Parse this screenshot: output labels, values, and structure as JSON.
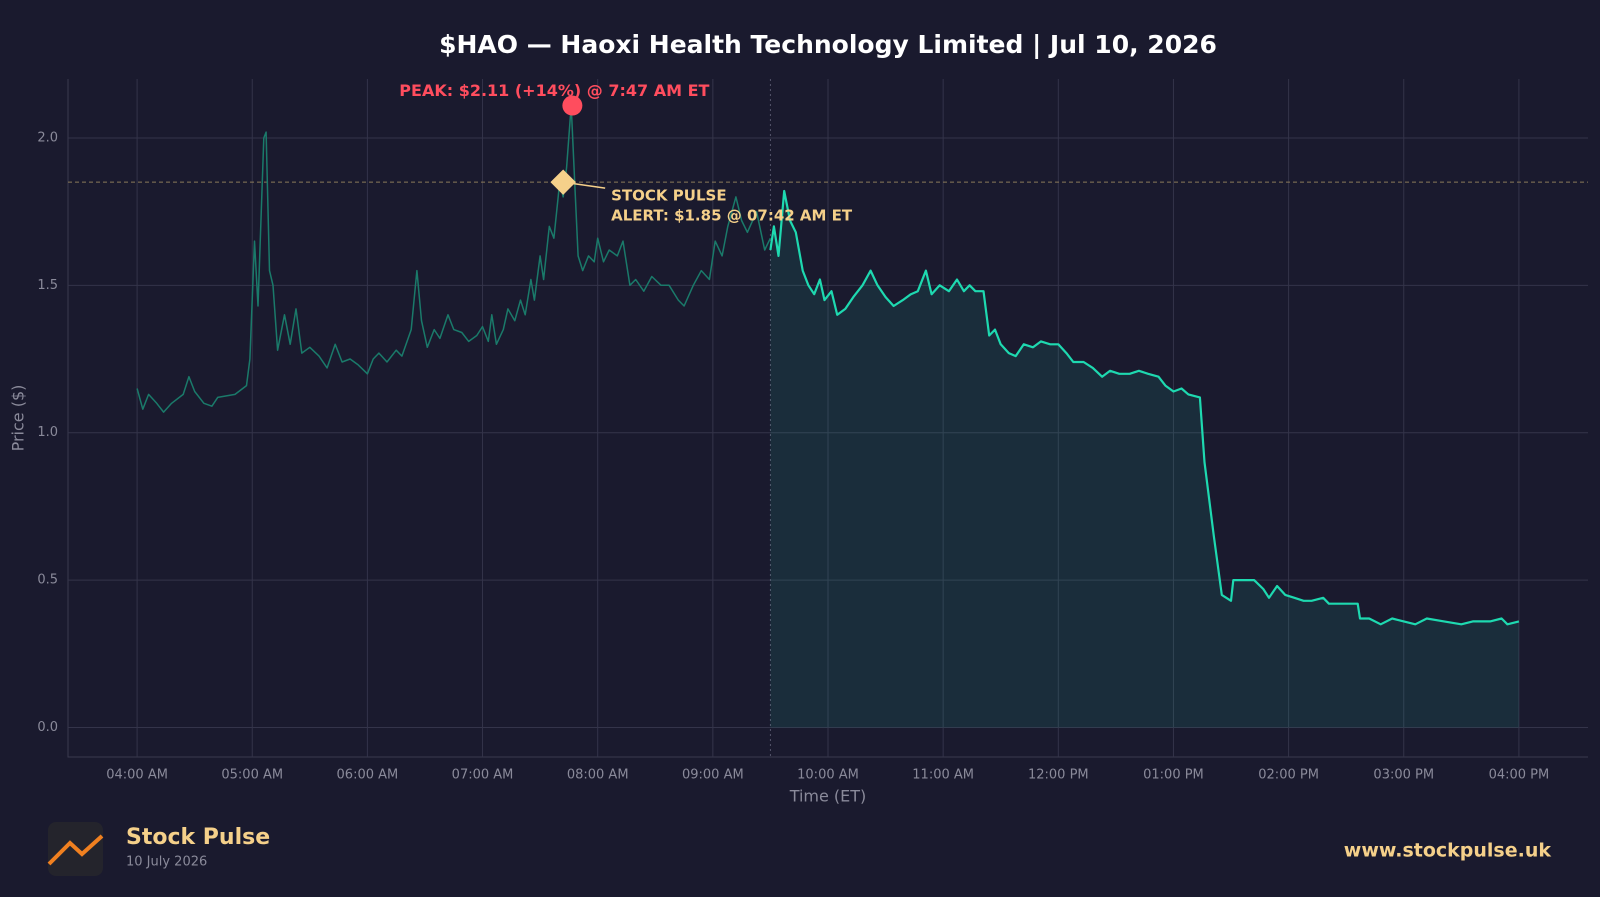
{
  "chart_data": {
    "type": "line",
    "title": "$HAO — Haoxi Health Technology Limited  |  Jul 10, 2026",
    "xlabel": "Time (ET)",
    "ylabel": "Price ($)",
    "xlim": [
      3.4,
      16.6
    ],
    "ylim": [
      -0.1,
      2.2
    ],
    "xticks": [
      {
        "value": 4,
        "label": "04:00 AM"
      },
      {
        "value": 5,
        "label": "05:00 AM"
      },
      {
        "value": 6,
        "label": "06:00 AM"
      },
      {
        "value": 7,
        "label": "07:00 AM"
      },
      {
        "value": 8,
        "label": "08:00 AM"
      },
      {
        "value": 9,
        "label": "09:00 AM"
      },
      {
        "value": 10,
        "label": "10:00 AM"
      },
      {
        "value": 11,
        "label": "11:00 AM"
      },
      {
        "value": 12,
        "label": "12:00 PM"
      },
      {
        "value": 13,
        "label": "01:00 PM"
      },
      {
        "value": 14,
        "label": "02:00 PM"
      },
      {
        "value": 15,
        "label": "03:00 PM"
      },
      {
        "value": 16,
        "label": "04:00 PM"
      }
    ],
    "yticks": [
      {
        "value": 0,
        "label": "0.0"
      },
      0.5,
      {
        "value": 1,
        "label": "1.0"
      },
      1.5,
      {
        "value": 2,
        "label": "2.0"
      }
    ],
    "grid": true,
    "market_open": 9.5,
    "series": [
      {
        "color": "#1a7a6a",
        "fill": false,
        "x": [
          4.0,
          4.05,
          4.1,
          4.17,
          4.23,
          4.3,
          4.4,
          4.45,
          4.5,
          4.58,
          4.65,
          4.7,
          4.85,
          4.95,
          4.98,
          5.02,
          5.05,
          5.1,
          5.12,
          5.15,
          5.18,
          5.22,
          5.28,
          5.33,
          5.38,
          5.43,
          5.5,
          5.58,
          5.65,
          5.72,
          5.78,
          5.85,
          5.92,
          6.0,
          6.05,
          6.1,
          6.17,
          6.25,
          6.3,
          6.38,
          6.43,
          6.47,
          6.52,
          6.58,
          6.63,
          6.7,
          6.75,
          6.82,
          6.88,
          6.95,
          7.0,
          7.05,
          7.08,
          7.12,
          7.18,
          7.22,
          7.28,
          7.33,
          7.37,
          7.42,
          7.45,
          7.5,
          7.53,
          7.58,
          7.62,
          7.67,
          7.7,
          7.73,
          7.77,
          7.8,
          7.83,
          7.87,
          7.92,
          7.97,
          8.0,
          8.05,
          8.1,
          8.17,
          8.22,
          8.28,
          8.33,
          8.4,
          8.47,
          8.55,
          8.62,
          8.7,
          8.75,
          8.83,
          8.9,
          8.97,
          9.02,
          9.08,
          9.13,
          9.2,
          9.25,
          9.3,
          9.38,
          9.45,
          9.5
        ],
        "values": [
          1.15,
          1.08,
          1.13,
          1.1,
          1.07,
          1.1,
          1.13,
          1.19,
          1.14,
          1.1,
          1.09,
          1.12,
          1.13,
          1.16,
          1.25,
          1.65,
          1.43,
          2.0,
          2.02,
          1.55,
          1.5,
          1.28,
          1.4,
          1.3,
          1.42,
          1.27,
          1.29,
          1.26,
          1.22,
          1.3,
          1.24,
          1.25,
          1.23,
          1.2,
          1.25,
          1.27,
          1.24,
          1.28,
          1.26,
          1.35,
          1.55,
          1.38,
          1.29,
          1.35,
          1.32,
          1.4,
          1.35,
          1.34,
          1.31,
          1.33,
          1.36,
          1.31,
          1.4,
          1.3,
          1.35,
          1.42,
          1.38,
          1.45,
          1.4,
          1.52,
          1.45,
          1.6,
          1.52,
          1.7,
          1.66,
          1.85,
          1.8,
          1.9,
          2.11,
          1.85,
          1.6,
          1.55,
          1.6,
          1.58,
          1.66,
          1.58,
          1.62,
          1.6,
          1.65,
          1.5,
          1.52,
          1.48,
          1.53,
          1.5,
          1.5,
          1.45,
          1.43,
          1.5,
          1.55,
          1.52,
          1.65,
          1.6,
          1.7,
          1.8,
          1.72,
          1.68,
          1.75,
          1.62,
          1.66
        ]
      },
      {
        "color": "#1ed9b0",
        "fill": true,
        "x": [
          9.5,
          9.53,
          9.57,
          9.62,
          9.67,
          9.72,
          9.78,
          9.83,
          9.88,
          9.93,
          9.97,
          10.03,
          10.08,
          10.15,
          10.22,
          10.3,
          10.37,
          10.43,
          10.5,
          10.57,
          10.65,
          10.72,
          10.78,
          10.85,
          10.9,
          10.97,
          11.05,
          11.12,
          11.18,
          11.23,
          11.28,
          11.35,
          11.4,
          11.45,
          11.5,
          11.57,
          11.63,
          11.7,
          11.78,
          11.85,
          11.93,
          12.0,
          12.07,
          12.13,
          12.22,
          12.3,
          12.38,
          12.45,
          12.53,
          12.62,
          12.7,
          12.78,
          12.87,
          12.93,
          13.0,
          13.07,
          13.13,
          13.23,
          13.27,
          13.35,
          13.42,
          13.5,
          13.52,
          13.6,
          13.7,
          13.78,
          13.83,
          13.9,
          13.97,
          14.05,
          14.13,
          14.2,
          14.3,
          14.35,
          14.5,
          14.6,
          14.62,
          14.7,
          14.8,
          14.9,
          15.0,
          15.1,
          15.2,
          15.35,
          15.5,
          15.6,
          15.75,
          15.85,
          15.9,
          16.0
        ],
        "values": [
          1.62,
          1.7,
          1.6,
          1.82,
          1.72,
          1.68,
          1.55,
          1.5,
          1.47,
          1.52,
          1.45,
          1.48,
          1.4,
          1.42,
          1.46,
          1.5,
          1.55,
          1.5,
          1.46,
          1.43,
          1.45,
          1.47,
          1.48,
          1.55,
          1.47,
          1.5,
          1.48,
          1.52,
          1.48,
          1.5,
          1.48,
          1.48,
          1.33,
          1.35,
          1.3,
          1.27,
          1.26,
          1.3,
          1.29,
          1.31,
          1.3,
          1.3,
          1.27,
          1.24,
          1.24,
          1.22,
          1.19,
          1.21,
          1.2,
          1.2,
          1.21,
          1.2,
          1.19,
          1.16,
          1.14,
          1.15,
          1.13,
          1.12,
          0.9,
          0.65,
          0.45,
          0.43,
          0.5,
          0.5,
          0.5,
          0.47,
          0.44,
          0.48,
          0.45,
          0.44,
          0.43,
          0.43,
          0.44,
          0.42,
          0.42,
          0.42,
          0.37,
          0.37,
          0.35,
          0.37,
          0.36,
          0.35,
          0.37,
          0.36,
          0.35,
          0.36,
          0.36,
          0.37,
          0.35,
          0.36
        ]
      }
    ],
    "annotations": [
      {
        "kind": "peak",
        "text": "PEAK: $2.11 (+14%) @ 7:47 AM ET",
        "x": 7.78,
        "y": 2.11,
        "color": "#ff4d5e"
      },
      {
        "kind": "alert",
        "lines": [
          "STOCK PULSE",
          "ALERT: $1.85 @ 07:42 AM ET"
        ],
        "x": 7.7,
        "y": 1.85,
        "color": "#f5d08a"
      }
    ]
  },
  "footer": {
    "brand": "Stock Pulse",
    "date": "10 July 2026",
    "url": "www.stockpulse.uk"
  }
}
